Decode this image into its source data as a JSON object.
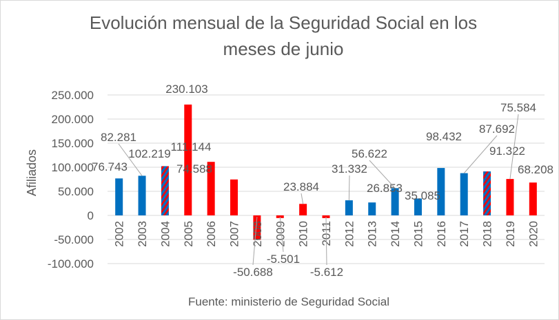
{
  "chart_data": {
    "type": "bar",
    "title": "Evolución mensual de la Seguridad Social en los meses de junio",
    "title_lines": [
      "Evolución mensual de la Seguridad Social en los",
      "meses de junio"
    ],
    "ylabel": "Afiliados",
    "xlabel": "",
    "source": "Fuente: ministerio de Seguridad Social",
    "ylim": [
      -100000,
      250000
    ],
    "yticks": [
      250000,
      200000,
      150000,
      100000,
      50000,
      0,
      -50000,
      -100000
    ],
    "ytick_labels": [
      "250.000",
      "200.000",
      "150.000",
      "100.000",
      "50.000",
      "0",
      "-50.000",
      "-100.000"
    ],
    "grid": true,
    "colors": {
      "blue": "#0070c0",
      "red": "#ff0000"
    },
    "categories": [
      "2002",
      "2003",
      "2004",
      "2005",
      "2006",
      "2007",
      "2008",
      "2009",
      "2010",
      "2011",
      "2012",
      "2013",
      "2014",
      "2015",
      "2016",
      "2017",
      "2018",
      "2019",
      "2020"
    ],
    "values": [
      76743,
      82281,
      102219,
      230103,
      111144,
      74588,
      -50688,
      -5501,
      23884,
      -5612,
      31332,
      26853,
      56622,
      35085,
      98432,
      87692,
      91322,
      75584,
      68208
    ],
    "data_labels": [
      "76.743",
      "82.281",
      "102.219",
      "230.103",
      "111.144",
      "74.588",
      "-50.688",
      "-5.501",
      "23.884",
      "-5.612",
      "31.332",
      "26.853",
      "56.622",
      "35.085",
      "98.432",
      "87.692",
      "91.322",
      "75.584",
      "68.208"
    ],
    "bar_fill": [
      "blue",
      "blue",
      "striped",
      "red",
      "red",
      "red",
      "red",
      "red",
      "red",
      "red",
      "blue",
      "blue",
      "blue",
      "blue",
      "blue",
      "blue",
      "striped",
      "red",
      "red"
    ]
  }
}
